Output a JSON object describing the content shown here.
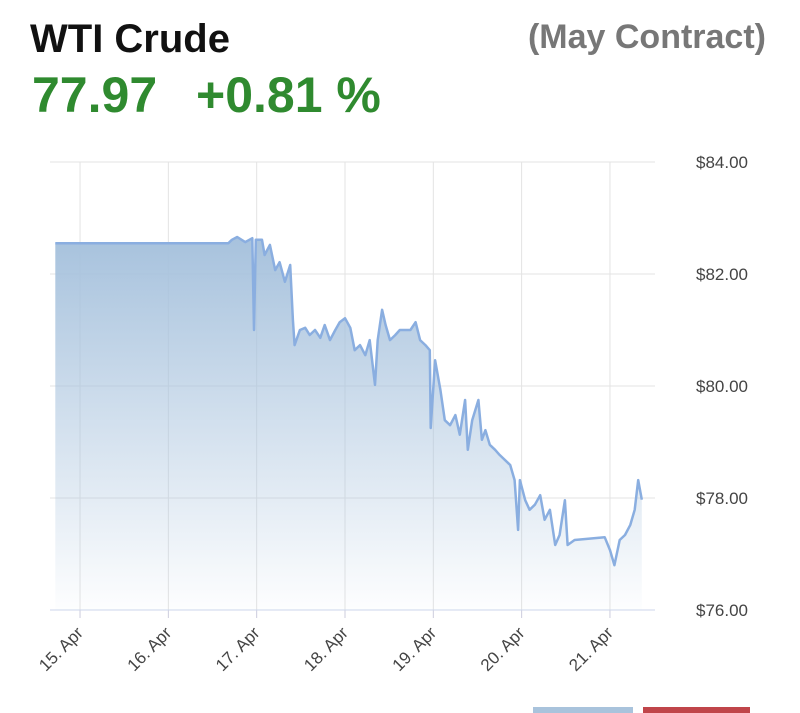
{
  "chart_data": {
    "type": "area",
    "title": "WTI Crude",
    "subtitle": "(May Contract)",
    "price": 77.97,
    "change": {
      "value": 0.81,
      "label": "+0.81 %"
    },
    "x": [
      14.72,
      16.68,
      16.72,
      16.78,
      16.87,
      16.95,
      16.97,
      16.99,
      17.06,
      17.09,
      17.15,
      17.21,
      17.26,
      17.32,
      17.38,
      17.41,
      17.43,
      17.49,
      17.55,
      17.6,
      17.66,
      17.72,
      17.77,
      17.83,
      17.89,
      17.94,
      18.0,
      18.06,
      18.11,
      18.17,
      18.23,
      18.28,
      18.34,
      18.37,
      18.42,
      18.46,
      18.51,
      18.57,
      18.62,
      18.74,
      18.8,
      18.85,
      18.91,
      18.96,
      18.97,
      19.02,
      19.08,
      19.13,
      19.19,
      19.25,
      19.3,
      19.36,
      19.39,
      19.44,
      19.51,
      19.55,
      19.59,
      19.64,
      19.7,
      19.75,
      19.87,
      19.92,
      19.96,
      19.98,
      20.04,
      20.09,
      20.15,
      20.21,
      20.26,
      20.32,
      20.38,
      20.43,
      20.49,
      20.52,
      20.6,
      20.94,
      21.0,
      21.05,
      21.11,
      21.17,
      21.23,
      21.28,
      21.32,
      21.36
    ],
    "values": [
      82.55,
      82.55,
      82.61,
      82.66,
      82.57,
      82.64,
      81.0,
      82.61,
      82.61,
      82.34,
      82.52,
      82.07,
      82.21,
      81.86,
      82.16,
      81.18,
      80.73,
      81.0,
      81.04,
      80.91,
      81.0,
      80.86,
      81.09,
      80.82,
      81.0,
      81.14,
      81.21,
      81.04,
      80.64,
      80.73,
      80.55,
      80.82,
      80.02,
      80.82,
      81.36,
      81.09,
      80.82,
      80.91,
      81.0,
      81.0,
      81.14,
      80.82,
      80.73,
      80.64,
      79.25,
      80.46,
      79.93,
      79.39,
      79.3,
      79.48,
      79.13,
      79.75,
      78.86,
      79.39,
      79.75,
      79.04,
      79.21,
      78.95,
      78.86,
      78.77,
      78.59,
      78.32,
      77.43,
      78.32,
      77.96,
      77.79,
      77.88,
      78.05,
      77.61,
      77.79,
      77.16,
      77.34,
      77.96,
      77.16,
      77.25,
      77.3,
      77.07,
      76.8,
      77.25,
      77.34,
      77.52,
      77.79,
      78.32,
      77.97
    ],
    "color": "#8aaee0",
    "fill_color": "#a7c2dd",
    "xlim": [
      14.66,
      21.51
    ],
    "ylim": [
      76,
      84
    ],
    "xticks": [
      {
        "value": 15,
        "label": "15. Apr"
      },
      {
        "value": 16,
        "label": "16. Apr"
      },
      {
        "value": 17,
        "label": "17. Apr"
      },
      {
        "value": 18,
        "label": "18. Apr"
      },
      {
        "value": 19,
        "label": "19. Apr"
      },
      {
        "value": 20,
        "label": "20. Apr"
      },
      {
        "value": 21,
        "label": "21. Apr"
      }
    ],
    "yticks": [
      {
        "value": 76,
        "label": "$76.00"
      },
      {
        "value": 78,
        "label": "$78.00"
      },
      {
        "value": 80,
        "label": "$80.00"
      },
      {
        "value": 82,
        "label": "$82.00"
      },
      {
        "value": 84,
        "label": "$84.00"
      }
    ],
    "grid": true
  }
}
